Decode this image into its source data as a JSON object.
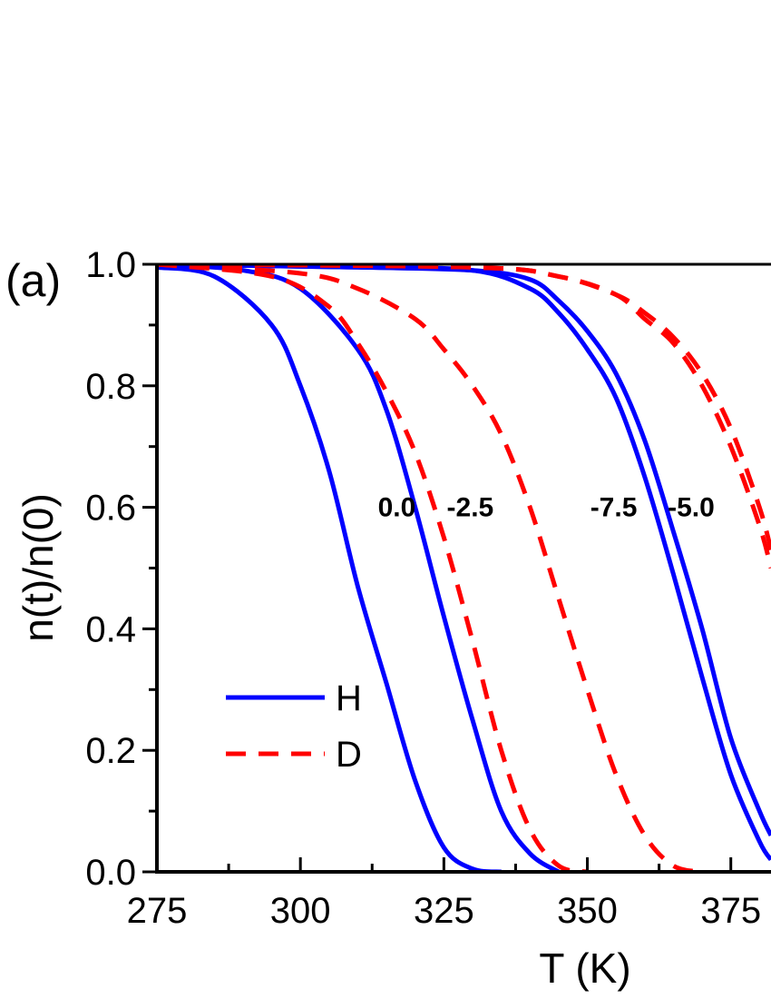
{
  "panel_label": "(a)",
  "chart_data": {
    "type": "line",
    "title": "",
    "xlabel": "T (K)",
    "ylabel": "n(t)/n(0)",
    "xlim": [
      275,
      382
    ],
    "ylim": [
      0,
      1
    ],
    "x_ticks": [
      275,
      300,
      325,
      350,
      375
    ],
    "x_tick_labels": [
      "275",
      "300",
      "325",
      "350",
      "375"
    ],
    "y_ticks": [
      0,
      0.2,
      0.4,
      0.6,
      0.8,
      1.0
    ],
    "y_tick_labels": [
      "0.0",
      "0.2",
      "0.4",
      "0.6",
      "0.8",
      "1.0"
    ],
    "grid": false,
    "legend": {
      "placement": "lower-left",
      "entries": [
        {
          "label": "H",
          "color": "#0000ff",
          "style": "solid"
        },
        {
          "label": "D",
          "color": "#ff0000",
          "style": "dashed"
        }
      ]
    },
    "curve_labels": [
      {
        "text": "0.0",
        "x": 313.5,
        "y": 0.6
      },
      {
        "text": "-2.5",
        "x": 325.5,
        "y": 0.6
      },
      {
        "text": "-7.5",
        "x": 350.5,
        "y": 0.6
      },
      {
        "text": "-5.0",
        "x": 364,
        "y": 0.6
      }
    ],
    "series": [
      {
        "isotope": "H",
        "color": "#0000ff",
        "style": "solid",
        "x": [
          275,
          285,
          295,
          300,
          305,
          310,
          315,
          320,
          325,
          330,
          335
        ],
        "y": [
          0.995,
          0.98,
          0.9,
          0.8,
          0.66,
          0.47,
          0.31,
          0.15,
          0.04,
          0.005,
          0.0
        ]
      },
      {
        "isotope": "H",
        "color": "#0000ff",
        "style": "solid",
        "x": [
          275,
          290,
          300,
          310,
          315,
          320,
          325,
          330,
          335,
          340,
          345
        ],
        "y": [
          1.0,
          0.99,
          0.96,
          0.86,
          0.76,
          0.6,
          0.42,
          0.25,
          0.1,
          0.03,
          0.0
        ]
      },
      {
        "isotope": "H",
        "color": "#0000ff",
        "style": "solid",
        "x": [
          275,
          310,
          330,
          340,
          345,
          350,
          355,
          360,
          365,
          370,
          375,
          380,
          382
        ],
        "y": [
          1.0,
          0.995,
          0.99,
          0.96,
          0.92,
          0.86,
          0.78,
          0.65,
          0.49,
          0.32,
          0.16,
          0.05,
          0.02
        ]
      },
      {
        "isotope": "H",
        "color": "#0000ff",
        "style": "solid",
        "x": [
          275,
          310,
          330,
          340,
          345,
          350,
          355,
          360,
          365,
          370,
          375,
          380,
          382
        ],
        "y": [
          1.0,
          0.995,
          0.99,
          0.975,
          0.94,
          0.89,
          0.82,
          0.71,
          0.56,
          0.4,
          0.22,
          0.1,
          0.06
        ]
      },
      {
        "isotope": "D",
        "color": "#ff0000",
        "style": "dashed",
        "x": [
          275,
          295,
          305,
          310,
          315,
          320,
          325,
          330,
          335,
          340,
          345,
          350
        ],
        "y": [
          1.0,
          0.98,
          0.93,
          0.87,
          0.79,
          0.69,
          0.55,
          0.38,
          0.2,
          0.07,
          0.01,
          0.0
        ]
      },
      {
        "isotope": "D",
        "color": "#ff0000",
        "style": "dashed",
        "x": [
          275,
          300,
          310,
          320,
          325,
          330,
          335,
          340,
          345,
          350,
          355,
          360,
          365,
          370
        ],
        "y": [
          1.0,
          0.985,
          0.96,
          0.91,
          0.86,
          0.8,
          0.72,
          0.6,
          0.45,
          0.3,
          0.16,
          0.06,
          0.01,
          0.0
        ]
      },
      {
        "isotope": "D",
        "color": "#ff0000",
        "style": "dashed",
        "x": [
          275,
          330,
          345,
          355,
          360,
          365,
          370,
          375,
          380,
          382
        ],
        "y": [
          1.0,
          0.995,
          0.98,
          0.95,
          0.92,
          0.88,
          0.82,
          0.73,
          0.6,
          0.53
        ]
      },
      {
        "isotope": "D",
        "color": "#ff0000",
        "style": "dashed",
        "x": [
          275,
          330,
          345,
          355,
          360,
          365,
          370,
          375,
          380,
          382
        ],
        "y": [
          1.0,
          0.995,
          0.98,
          0.95,
          0.91,
          0.87,
          0.8,
          0.7,
          0.57,
          0.5
        ]
      }
    ]
  }
}
